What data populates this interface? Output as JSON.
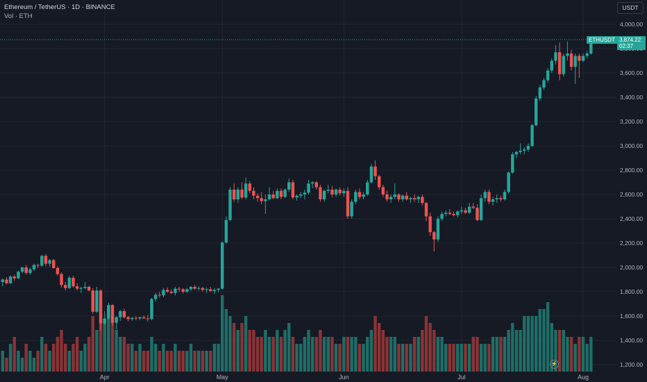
{
  "header": {
    "title": "Ethereum / TetherUS · 1D · BINANCE",
    "volume_label": "Vol · ETH",
    "currency_button": "USDT"
  },
  "price_badge": {
    "symbol": "ETHUSDT",
    "price": "3,874.22",
    "countdown": "02:37",
    "color": "#26a69a"
  },
  "colors": {
    "up": "#26a69a",
    "down": "#ef5350",
    "up_volume": "#1f6e67",
    "down_volume": "#8a3436",
    "grid": "#232632",
    "background": "#161a25"
  },
  "icons": {
    "bolt": "lightning-icon"
  },
  "chart_data": {
    "type": "candlestick",
    "title": "Ethereum / TetherUS · 1D · BINANCE",
    "y_axis": {
      "ticks": [
        1200,
        1400,
        1600,
        1800,
        2000,
        2200,
        2400,
        2600,
        2800,
        3000,
        3200,
        3400,
        3600,
        3800,
        4000
      ],
      "tick_labels": [
        "1,200.00",
        "1,400.00",
        "1,600.00",
        "1,800.00",
        "2,000.00",
        "2,200.00",
        "2,400.00",
        "2,600.00",
        "2,800.00",
        "3,000.00",
        "3,200.00",
        "3,400.00",
        "3,600.00",
        "3,800.00",
        "4,000.00"
      ],
      "range": [
        1190,
        4080
      ],
      "position": "right"
    },
    "x_axis": {
      "labels": [
        "Apr",
        "May",
        "Jun",
        "Jul",
        "Aug"
      ],
      "label_day_index": [
        26,
        56,
        87,
        117,
        148
      ]
    },
    "grid": true,
    "last_price": 3874.22,
    "volume_panel": "bottom overlay",
    "candles": [
      [
        1880,
        1910,
        1845,
        1900
      ],
      [
        1900,
        1920,
        1860,
        1870
      ],
      [
        1870,
        1935,
        1862,
        1925
      ],
      [
        1925,
        1940,
        1890,
        1910
      ],
      [
        1910,
        1975,
        1905,
        1965
      ],
      [
        1965,
        2005,
        1950,
        2000
      ],
      [
        2000,
        2020,
        1940,
        1955
      ],
      [
        1955,
        1995,
        1940,
        1985
      ],
      [
        1985,
        2030,
        1970,
        2020
      ],
      [
        2020,
        2030,
        1995,
        2015
      ],
      [
        2015,
        2105,
        2005,
        2095
      ],
      [
        2095,
        2110,
        2010,
        2030
      ],
      [
        2030,
        2070,
        2005,
        2060
      ],
      [
        2060,
        2070,
        1990,
        1995
      ],
      [
        1995,
        2010,
        1930,
        1945
      ],
      [
        1945,
        1960,
        1835,
        1855
      ],
      [
        1855,
        1880,
        1810,
        1830
      ],
      [
        1830,
        1930,
        1820,
        1915
      ],
      [
        1915,
        1930,
        1835,
        1845
      ],
      [
        1845,
        1870,
        1810,
        1825
      ],
      [
        1825,
        1840,
        1790,
        1830
      ],
      [
        1830,
        1880,
        1820,
        1840
      ],
      [
        1840,
        1850,
        1805,
        1810
      ],
      [
        1810,
        1830,
        1620,
        1635
      ],
      [
        1635,
        1840,
        1625,
        1810
      ],
      [
        1810,
        1820,
        1480,
        1540
      ],
      [
        1540,
        1640,
        1525,
        1580
      ],
      [
        1580,
        1710,
        1570,
        1690
      ],
      [
        1690,
        1700,
        1520,
        1545
      ],
      [
        1545,
        1600,
        1490,
        1590
      ],
      [
        1590,
        1650,
        1560,
        1640
      ],
      [
        1640,
        1660,
        1580,
        1590
      ],
      [
        1590,
        1600,
        1555,
        1575
      ],
      [
        1575,
        1590,
        1560,
        1585
      ],
      [
        1585,
        1600,
        1565,
        1580
      ],
      [
        1580,
        1595,
        1565,
        1590
      ],
      [
        1590,
        1605,
        1575,
        1580
      ],
      [
        1580,
        1610,
        1555,
        1575
      ],
      [
        1575,
        1750,
        1565,
        1740
      ],
      [
        1740,
        1790,
        1720,
        1775
      ],
      [
        1775,
        1800,
        1750,
        1770
      ],
      [
        1770,
        1830,
        1755,
        1815
      ],
      [
        1815,
        1835,
        1790,
        1800
      ],
      [
        1800,
        1820,
        1780,
        1790
      ],
      [
        1790,
        1840,
        1770,
        1825
      ],
      [
        1825,
        1840,
        1800,
        1820
      ],
      [
        1820,
        1830,
        1785,
        1800
      ],
      [
        1800,
        1830,
        1790,
        1820
      ],
      [
        1820,
        1845,
        1805,
        1840
      ],
      [
        1840,
        1855,
        1815,
        1825
      ],
      [
        1825,
        1845,
        1810,
        1830
      ],
      [
        1830,
        1840,
        1800,
        1815
      ],
      [
        1815,
        1835,
        1790,
        1820
      ],
      [
        1820,
        1840,
        1800,
        1805
      ],
      [
        1805,
        1830,
        1780,
        1815
      ],
      [
        1815,
        1830,
        1795,
        1825
      ],
      [
        1825,
        2215,
        1820,
        2205
      ],
      [
        2205,
        2420,
        2195,
        2390
      ],
      [
        2390,
        2660,
        2380,
        2640
      ],
      [
        2640,
        2690,
        2540,
        2560
      ],
      [
        2560,
        2660,
        2530,
        2640
      ],
      [
        2640,
        2700,
        2560,
        2575
      ],
      [
        2575,
        2740,
        2560,
        2690
      ],
      [
        2690,
        2710,
        2610,
        2630
      ],
      [
        2630,
        2660,
        2560,
        2590
      ],
      [
        2590,
        2610,
        2540,
        2570
      ],
      [
        2570,
        2620,
        2520,
        2545
      ],
      [
        2545,
        2600,
        2440,
        2560
      ],
      [
        2560,
        2660,
        2550,
        2600
      ],
      [
        2600,
        2630,
        2560,
        2570
      ],
      [
        2570,
        2650,
        2560,
        2630
      ],
      [
        2630,
        2650,
        2560,
        2580
      ],
      [
        2580,
        2650,
        2570,
        2640
      ],
      [
        2640,
        2730,
        2620,
        2700
      ],
      [
        2700,
        2720,
        2560,
        2575
      ],
      [
        2575,
        2600,
        2550,
        2590
      ],
      [
        2590,
        2620,
        2570,
        2600
      ],
      [
        2600,
        2640,
        2560,
        2615
      ],
      [
        2615,
        2720,
        2600,
        2690
      ],
      [
        2690,
        2710,
        2650,
        2700
      ],
      [
        2700,
        2710,
        2640,
        2660
      ],
      [
        2660,
        2680,
        2540,
        2560
      ],
      [
        2560,
        2640,
        2540,
        2630
      ],
      [
        2630,
        2680,
        2610,
        2640
      ],
      [
        2640,
        2670,
        2580,
        2600
      ],
      [
        2600,
        2650,
        2580,
        2640
      ],
      [
        2640,
        2660,
        2590,
        2610
      ],
      [
        2610,
        2650,
        2580,
        2630
      ],
      [
        2630,
        2660,
        2400,
        2420
      ],
      [
        2420,
        2560,
        2400,
        2540
      ],
      [
        2540,
        2640,
        2520,
        2620
      ],
      [
        2620,
        2650,
        2560,
        2580
      ],
      [
        2580,
        2620,
        2560,
        2600
      ],
      [
        2600,
        2720,
        2590,
        2700
      ],
      [
        2700,
        2850,
        2690,
        2830
      ],
      [
        2830,
        2880,
        2720,
        2750
      ],
      [
        2750,
        2760,
        2640,
        2660
      ],
      [
        2660,
        2680,
        2580,
        2600
      ],
      [
        2600,
        2630,
        2540,
        2560
      ],
      [
        2560,
        2600,
        2530,
        2580
      ],
      [
        2580,
        2690,
        2560,
        2600
      ],
      [
        2600,
        2610,
        2540,
        2560
      ],
      [
        2560,
        2600,
        2540,
        2590
      ],
      [
        2590,
        2620,
        2550,
        2560
      ],
      [
        2560,
        2580,
        2530,
        2570
      ],
      [
        2570,
        2600,
        2540,
        2560
      ],
      [
        2560,
        2590,
        2530,
        2580
      ],
      [
        2580,
        2600,
        2510,
        2530
      ],
      [
        2530,
        2540,
        2380,
        2420
      ],
      [
        2420,
        2450,
        2260,
        2290
      ],
      [
        2290,
        2300,
        2130,
        2230
      ],
      [
        2230,
        2420,
        2210,
        2400
      ],
      [
        2400,
        2460,
        2380,
        2440
      ],
      [
        2440,
        2470,
        2420,
        2450
      ],
      [
        2450,
        2480,
        2430,
        2440
      ],
      [
        2440,
        2460,
        2420,
        2430
      ],
      [
        2430,
        2470,
        2410,
        2460
      ],
      [
        2460,
        2500,
        2440,
        2470
      ],
      [
        2470,
        2490,
        2440,
        2450
      ],
      [
        2450,
        2530,
        2440,
        2500
      ],
      [
        2500,
        2530,
        2480,
        2490
      ],
      [
        2490,
        2520,
        2380,
        2390
      ],
      [
        2390,
        2600,
        2380,
        2570
      ],
      [
        2570,
        2640,
        2540,
        2620
      ],
      [
        2620,
        2640,
        2520,
        2540
      ],
      [
        2540,
        2580,
        2510,
        2560
      ],
      [
        2560,
        2600,
        2530,
        2570
      ],
      [
        2570,
        2590,
        2540,
        2560
      ],
      [
        2560,
        2640,
        2550,
        2620
      ],
      [
        2620,
        2790,
        2610,
        2780
      ],
      [
        2780,
        2950,
        2770,
        2930
      ],
      [
        2930,
        2960,
        2900,
        2950
      ],
      [
        2950,
        3020,
        2930,
        2960
      ],
      [
        2960,
        2990,
        2930,
        2970
      ],
      [
        2970,
        3020,
        2950,
        3000
      ],
      [
        3000,
        3180,
        2990,
        3170
      ],
      [
        3170,
        3410,
        3160,
        3390
      ],
      [
        3390,
        3500,
        3370,
        3480
      ],
      [
        3480,
        3560,
        3460,
        3540
      ],
      [
        3540,
        3640,
        3520,
        3620
      ],
      [
        3620,
        3720,
        3600,
        3700
      ],
      [
        3700,
        3830,
        3670,
        3770
      ],
      [
        3770,
        3850,
        3540,
        3590
      ],
      [
        3590,
        3760,
        3570,
        3740
      ],
      [
        3740,
        3860,
        3700,
        3760
      ],
      [
        3760,
        3790,
        3620,
        3650
      ],
      [
        3650,
        3760,
        3510,
        3740
      ],
      [
        3740,
        3760,
        3560,
        3700
      ],
      [
        3700,
        3760,
        3690,
        3740
      ],
      [
        3740,
        3780,
        3720,
        3760
      ],
      [
        3760,
        3880,
        3750,
        3874.22
      ]
    ],
    "volume_scale": [
      3,
      2,
      4,
      5,
      3,
      2,
      4,
      3,
      2,
      3,
      5,
      4,
      3,
      4,
      5,
      6,
      4,
      3,
      4,
      5,
      3,
      4,
      5,
      8,
      6,
      10,
      7,
      9,
      8,
      6,
      5,
      5,
      4,
      4,
      3,
      4,
      3,
      3,
      5,
      4,
      3,
      4,
      3,
      3,
      4,
      3,
      3,
      3,
      4,
      3,
      3,
      3,
      3,
      3,
      4,
      4,
      11,
      9,
      8,
      7,
      6,
      7,
      8,
      6,
      6,
      5,
      5,
      6,
      5,
      5,
      6,
      5,
      6,
      7,
      5,
      4,
      4,
      5,
      6,
      5,
      5,
      6,
      5,
      5,
      5,
      4,
      4,
      5,
      5,
      5,
      5,
      4,
      4,
      5,
      6,
      8,
      7,
      6,
      5,
      5,
      5,
      4,
      4,
      4,
      4,
      5,
      5,
      6,
      8,
      7,
      6,
      5,
      5,
      4,
      4,
      4,
      4,
      4,
      4,
      4,
      5,
      5,
      4,
      4,
      4,
      5,
      5,
      5,
      5,
      6,
      7,
      6,
      6,
      8,
      8,
      8,
      8,
      9,
      9,
      10,
      7,
      6,
      6,
      6,
      5,
      5,
      4,
      5,
      5,
      4,
      5
    ],
    "volume_unit_px": 10
  }
}
